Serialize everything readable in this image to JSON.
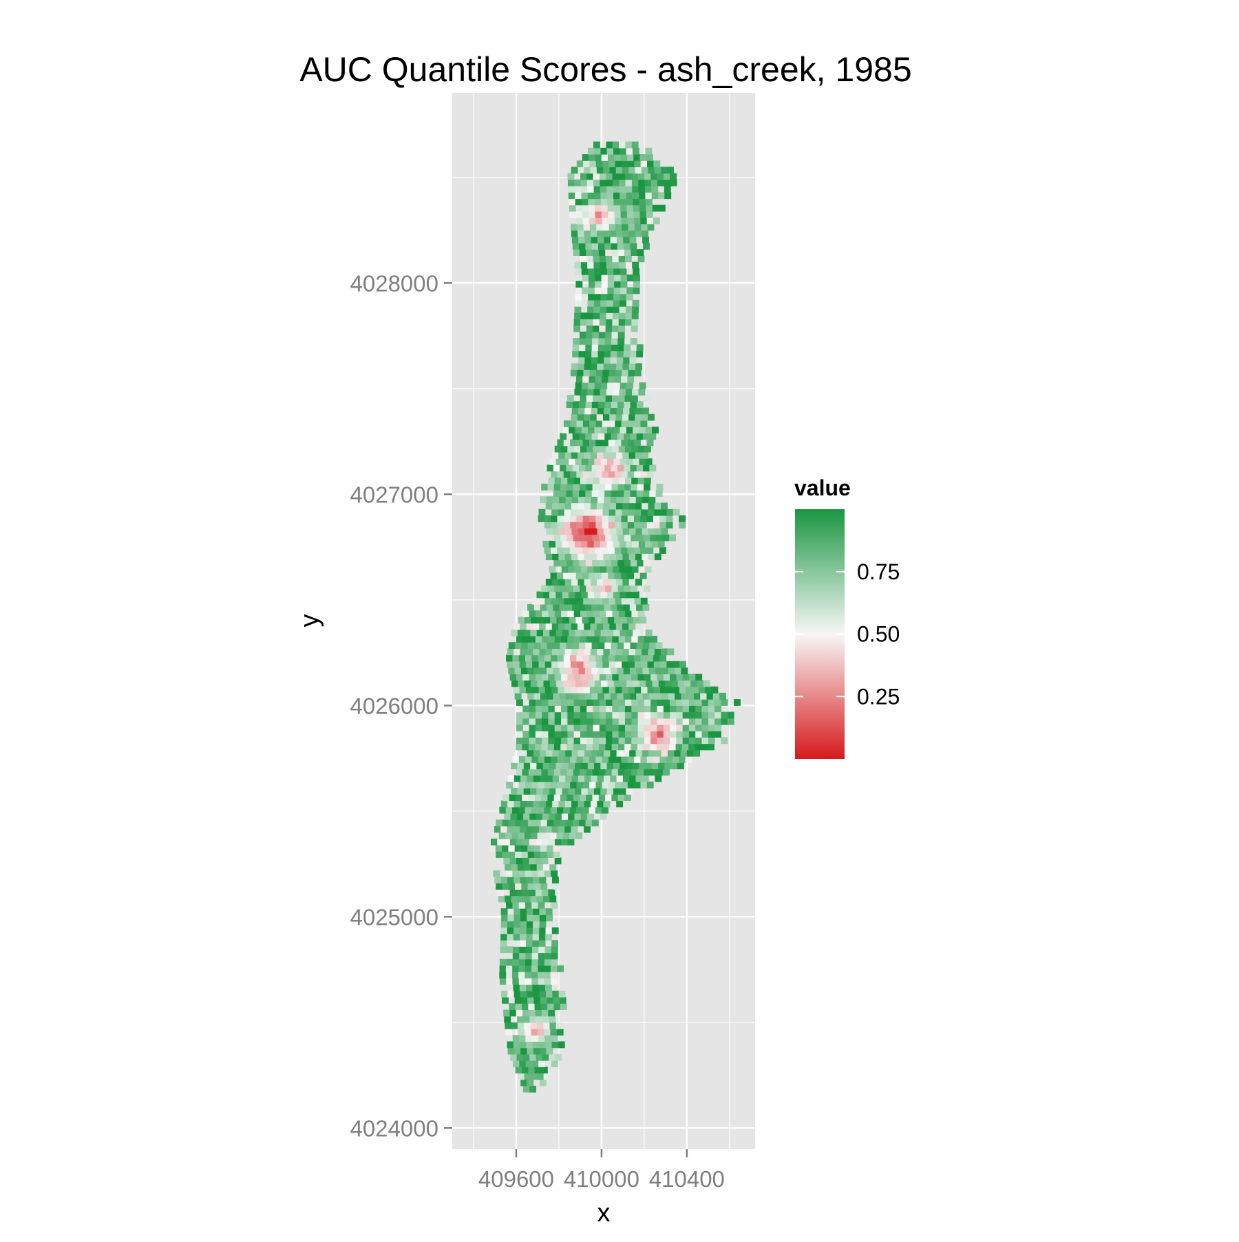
{
  "chart_data": {
    "type": "heatmap",
    "title": "AUC Quantile Scores - ash_creek, 1985",
    "xlabel": "x",
    "ylabel": "y",
    "x_ticks": [
      409600,
      410000,
      410400
    ],
    "x_tick_labels": [
      "409600",
      "410000",
      "410400"
    ],
    "y_ticks": [
      4024000,
      4025000,
      4026000,
      4027000,
      4028000
    ],
    "y_tick_labels": [
      "4024000",
      "4025000",
      "4026000",
      "4027000",
      "4028000"
    ],
    "xlim": [
      409300,
      410720
    ],
    "ylim": [
      4023900,
      4028900
    ],
    "grid": true,
    "cell_size": 30,
    "legend": {
      "title": "value",
      "position": "right",
      "range": [
        0,
        1
      ],
      "breaks": [
        0.25,
        0.5,
        0.75
      ],
      "break_labels": [
        "0.25",
        "0.50",
        "0.75"
      ],
      "low_color": "#d7191c",
      "mid_color": "#f7f7f7",
      "high_color": "#1a9641",
      "midpoint": 0.5
    },
    "extent": [
      {
        "y": 4024150,
        "x_min": 409640,
        "x_max": 409690
      },
      {
        "y": 4024350,
        "x_min": 409560,
        "x_max": 409820
      },
      {
        "y": 4024700,
        "x_min": 409520,
        "x_max": 409800
      },
      {
        "y": 4025000,
        "x_min": 409530,
        "x_max": 409760
      },
      {
        "y": 4025300,
        "x_min": 409470,
        "x_max": 409800
      },
      {
        "y": 4025600,
        "x_min": 409550,
        "x_max": 410200
      },
      {
        "y": 4025800,
        "x_min": 409600,
        "x_max": 410560
      },
      {
        "y": 4026000,
        "x_min": 409600,
        "x_max": 410620
      },
      {
        "y": 4026200,
        "x_min": 409550,
        "x_max": 410350
      },
      {
        "y": 4026350,
        "x_min": 409580,
        "x_max": 410200
      },
      {
        "y": 4026600,
        "x_min": 409760,
        "x_max": 410200
      },
      {
        "y": 4026850,
        "x_min": 409700,
        "x_max": 410380
      },
      {
        "y": 4027050,
        "x_min": 409720,
        "x_max": 410240
      },
      {
        "y": 4027300,
        "x_min": 409820,
        "x_max": 410240
      },
      {
        "y": 4027600,
        "x_min": 409860,
        "x_max": 410170
      },
      {
        "y": 4028000,
        "x_min": 409880,
        "x_max": 410150
      },
      {
        "y": 4028300,
        "x_min": 409850,
        "x_max": 410250
      },
      {
        "y": 4028500,
        "x_min": 409840,
        "x_max": 410340
      },
      {
        "y": 4028650,
        "x_min": 409970,
        "x_max": 410180
      }
    ],
    "low_value_zones": [
      {
        "x": 409920,
        "y": 4026800,
        "radius": 170,
        "value": 0.04
      },
      {
        "x": 410020,
        "y": 4027100,
        "radius": 130,
        "value": 0.28
      },
      {
        "x": 410000,
        "y": 4026550,
        "radius": 90,
        "value": 0.3
      },
      {
        "x": 409880,
        "y": 4026150,
        "radius": 150,
        "value": 0.22
      },
      {
        "x": 410250,
        "y": 4025850,
        "radius": 130,
        "value": 0.22
      },
      {
        "x": 409980,
        "y": 4028300,
        "radius": 100,
        "value": 0.25
      },
      {
        "x": 409680,
        "y": 4024450,
        "radius": 100,
        "value": 0.3
      },
      {
        "x": 409720,
        "y": 4025350,
        "radius": 70,
        "value": 0.35
      }
    ]
  }
}
